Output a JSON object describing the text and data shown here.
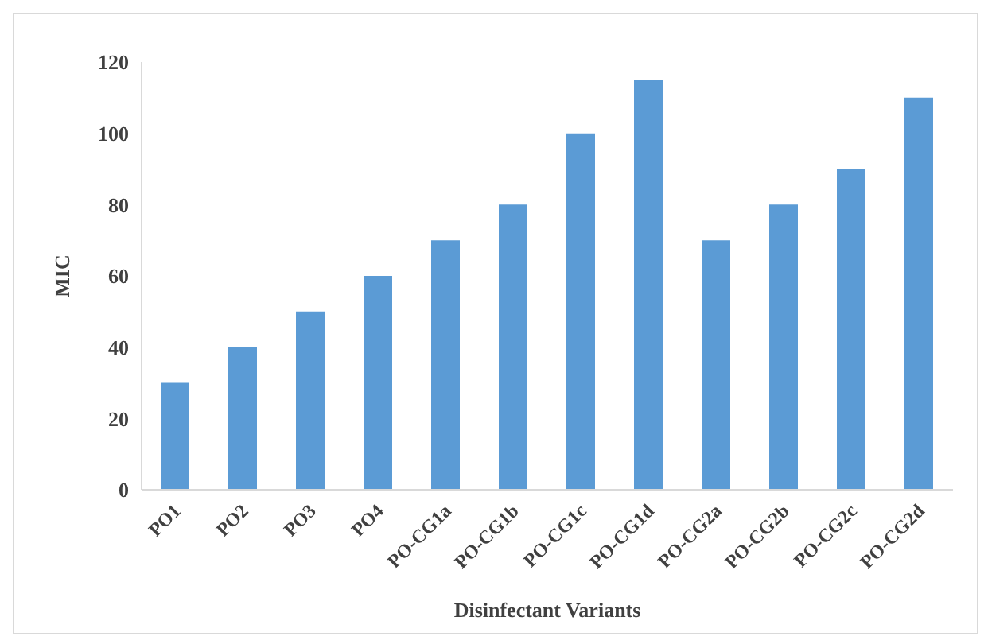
{
  "chart_data": {
    "type": "bar",
    "xlabel": "Disinfectant Variants",
    "ylabel": "MIC",
    "categories": [
      "PO1",
      "PO2",
      "PO3",
      "PO4",
      "PO-CG1a",
      "PO-CG1b",
      "PO-CG1c",
      "PO-CG1d",
      "PO-CG2a",
      "PO-CG2b",
      "PO-CG2c",
      "PO-CG2d"
    ],
    "values": [
      30,
      40,
      50,
      60,
      70,
      80,
      100,
      115,
      70,
      80,
      90,
      110
    ],
    "color": "#5b9bd5",
    "ylim": [
      0,
      120
    ],
    "yticks": [
      0,
      20,
      40,
      60,
      80,
      100,
      120
    ],
    "grid": false
  }
}
